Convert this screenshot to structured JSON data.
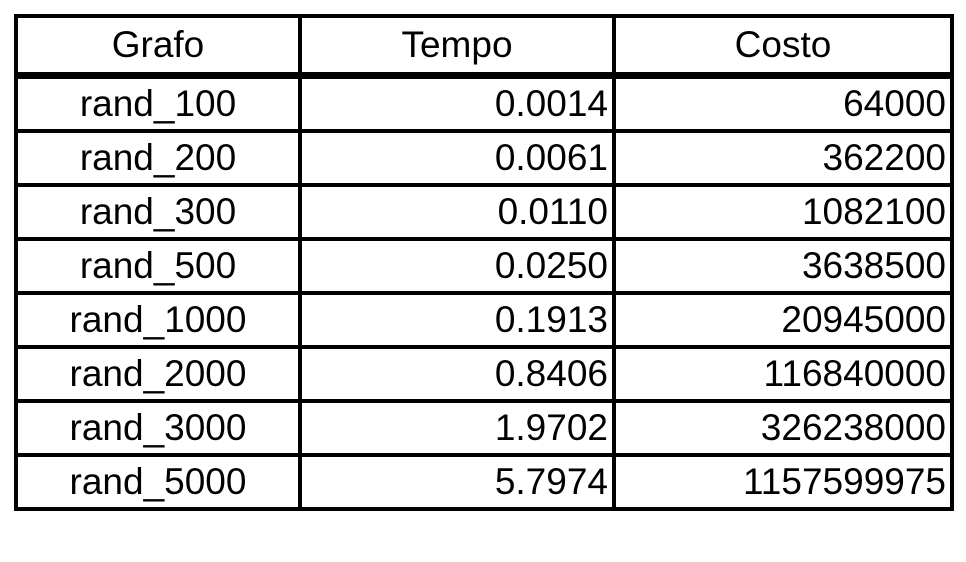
{
  "table": {
    "headers": [
      "Grafo",
      "Tempo",
      "Costo"
    ],
    "rows": [
      {
        "grafo": "rand_100",
        "tempo": "0.0014",
        "costo": "64000"
      },
      {
        "grafo": "rand_200",
        "tempo": "0.0061",
        "costo": "362200"
      },
      {
        "grafo": "rand_300",
        "tempo": "0.0110",
        "costo": "1082100"
      },
      {
        "grafo": "rand_500",
        "tempo": "0.0250",
        "costo": "3638500"
      },
      {
        "grafo": "rand_1000",
        "tempo": "0.1913",
        "costo": "20945000"
      },
      {
        "grafo": "rand_2000",
        "tempo": "0.8406",
        "costo": "116840000"
      },
      {
        "grafo": "rand_3000",
        "tempo": "1.9702",
        "costo": "326238000"
      },
      {
        "grafo": "rand_5000",
        "tempo": "5.7974",
        "costo": "1157599975"
      }
    ]
  }
}
